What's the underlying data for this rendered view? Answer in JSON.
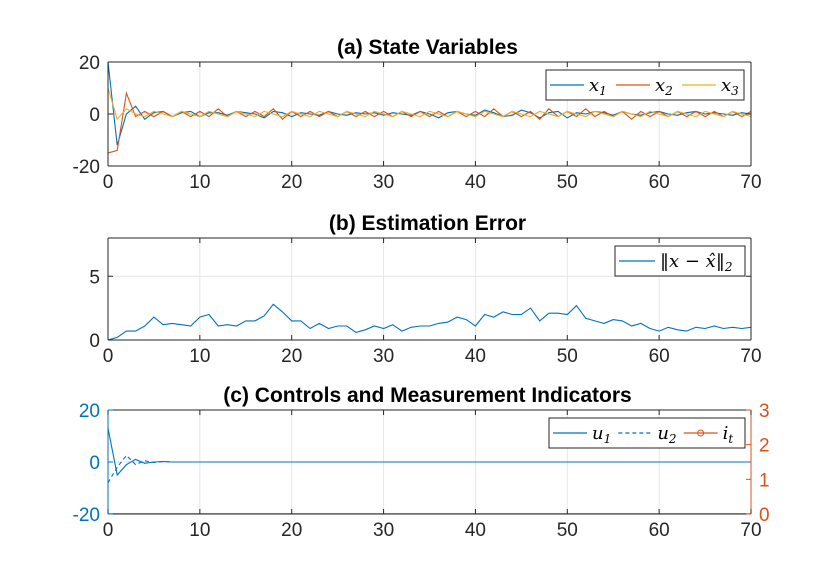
{
  "colors": {
    "blue": "#0072BD",
    "orange": "#D95319",
    "yellow": "#EDB120",
    "left_axis_c": "#0072BD",
    "right_axis_c": "#D95319"
  },
  "chart_data": [
    {
      "id": "a",
      "type": "line",
      "title": "(a) State Variables",
      "xlim": [
        0,
        70
      ],
      "ylim": [
        -20,
        20
      ],
      "xticks": [
        0,
        10,
        20,
        30,
        40,
        50,
        60,
        70
      ],
      "xtick_labels": [
        "0",
        "10",
        "20",
        "30",
        "40",
        "50",
        "60",
        "70"
      ],
      "yticks": [
        -20,
        0,
        20
      ],
      "ytick_labels": [
        "-20",
        "0",
        "20"
      ],
      "grid": true,
      "legend_position": "top-right",
      "legend": [
        "x1",
        "x2",
        "x3"
      ],
      "legend_display": [
        {
          "base": "x",
          "sub": "1"
        },
        {
          "base": "x",
          "sub": "2"
        },
        {
          "base": "x",
          "sub": "3"
        }
      ],
      "series": [
        {
          "name": "x1",
          "color": "#0072BD",
          "x": [
            0,
            1,
            2,
            3,
            4,
            5,
            6,
            7,
            8,
            9,
            10,
            11,
            12,
            13,
            14,
            15,
            16,
            17,
            18,
            19,
            20,
            21,
            22,
            23,
            24,
            25,
            26,
            27,
            28,
            29,
            30,
            31,
            32,
            33,
            34,
            35,
            36,
            37,
            38,
            39,
            40,
            41,
            42,
            43,
            44,
            45,
            46,
            47,
            48,
            49,
            50,
            51,
            52,
            53,
            54,
            55,
            56,
            57,
            58,
            59,
            60,
            61,
            62,
            63,
            64,
            65,
            66,
            67,
            68,
            69,
            70
          ],
          "values": [
            20,
            -12,
            0,
            3,
            -2,
            0.5,
            1,
            -1,
            0.5,
            1,
            -1,
            0.5,
            0.5,
            -0.5,
            1,
            0.5,
            0,
            -1.5,
            1,
            0.5,
            -1,
            0.5,
            0,
            -0.5,
            1,
            0,
            -0.5,
            0.5,
            0,
            0.5,
            -0.5,
            0.5,
            0,
            -0.5,
            1,
            0,
            -1.5,
            0.5,
            1,
            0,
            -0.5,
            1.5,
            0.5,
            -1,
            -0.5,
            1.5,
            0.5,
            -1.5,
            0.5,
            1,
            -1.5,
            0.5,
            0,
            1,
            0.5,
            -0.5,
            1,
            0,
            -0.5,
            0.5,
            1,
            0,
            -0.5,
            0.5,
            1,
            0,
            0.5,
            0,
            -0.5,
            0.5,
            0
          ]
        },
        {
          "name": "x2",
          "color": "#D95319",
          "x": [
            0,
            1,
            2,
            3,
            4,
            5,
            6,
            7,
            8,
            9,
            10,
            11,
            12,
            13,
            14,
            15,
            16,
            17,
            18,
            19,
            20,
            21,
            22,
            23,
            24,
            25,
            26,
            27,
            28,
            29,
            30,
            31,
            32,
            33,
            34,
            35,
            36,
            37,
            38,
            39,
            40,
            41,
            42,
            43,
            44,
            45,
            46,
            47,
            48,
            49,
            50,
            51,
            52,
            53,
            54,
            55,
            56,
            57,
            58,
            59,
            60,
            61,
            62,
            63,
            64,
            65,
            66,
            67,
            68,
            69,
            70
          ],
          "values": [
            -15,
            -14,
            8,
            -1,
            1,
            -1,
            1,
            -1,
            1,
            -1,
            1,
            -1,
            2,
            -1,
            1,
            -1,
            1,
            -1,
            2,
            -2,
            1,
            -1,
            1,
            -1,
            1,
            -1,
            1,
            -1,
            1,
            -1,
            1,
            -1,
            1,
            -1,
            1,
            -1,
            1,
            -1,
            1,
            -1,
            1,
            -1,
            2,
            -1,
            1,
            -1,
            1,
            -2,
            2,
            -1,
            1,
            -1,
            2,
            -1,
            1,
            -1,
            1,
            -2,
            1,
            -1,
            1,
            -1,
            1,
            -1,
            1,
            -1,
            1,
            -1,
            1,
            -1,
            1
          ]
        },
        {
          "name": "x3",
          "color": "#EDB120",
          "x": [
            0,
            1,
            2,
            3,
            4,
            5,
            6,
            7,
            8,
            9,
            10,
            11,
            12,
            13,
            14,
            15,
            16,
            17,
            18,
            19,
            20,
            21,
            22,
            23,
            24,
            25,
            26,
            27,
            28,
            29,
            30,
            31,
            32,
            33,
            34,
            35,
            36,
            37,
            38,
            39,
            40,
            41,
            42,
            43,
            44,
            45,
            46,
            47,
            48,
            49,
            50,
            51,
            52,
            53,
            54,
            55,
            56,
            57,
            58,
            59,
            60,
            61,
            62,
            63,
            64,
            65,
            66,
            67,
            68,
            69,
            70
          ],
          "values": [
            10,
            -2,
            2,
            0,
            -1,
            1,
            0,
            -1,
            1,
            0,
            -1,
            1,
            0,
            -1,
            1,
            0,
            -1,
            1,
            0,
            -1,
            1,
            0,
            -1,
            1,
            0,
            -1,
            1,
            0,
            -1,
            1,
            0,
            -1,
            1,
            0,
            -1,
            1,
            0,
            -1,
            1,
            0,
            -1,
            1,
            0,
            -1,
            1,
            0,
            -1,
            1,
            0,
            -1,
            1,
            0,
            -1,
            1,
            0,
            -1,
            1,
            0,
            -1,
            1,
            0,
            -1,
            1,
            0,
            -1,
            1,
            0,
            -1,
            1,
            0,
            -1
          ]
        }
      ]
    },
    {
      "id": "b",
      "type": "line",
      "title": "(b) Estimation Error",
      "xlim": [
        0,
        70
      ],
      "ylim": [
        0,
        8
      ],
      "xticks": [
        0,
        10,
        20,
        30,
        40,
        50,
        60,
        70
      ],
      "xtick_labels": [
        "0",
        "10",
        "20",
        "30",
        "40",
        "50",
        "60",
        "70"
      ],
      "yticks": [
        0,
        5
      ],
      "ytick_labels": [
        "0",
        "5"
      ],
      "grid": true,
      "legend_position": "top-right",
      "legend": [
        "||x - x̂||2"
      ],
      "legend_display": [
        {
          "base": "‖x − x̂‖",
          "sub": "2"
        }
      ],
      "series": [
        {
          "name": "||x - x̂||2",
          "color": "#0072BD",
          "x": [
            0,
            1,
            2,
            3,
            4,
            5,
            6,
            7,
            8,
            9,
            10,
            11,
            12,
            13,
            14,
            15,
            16,
            17,
            18,
            19,
            20,
            21,
            22,
            23,
            24,
            25,
            26,
            27,
            28,
            29,
            30,
            31,
            32,
            33,
            34,
            35,
            36,
            37,
            38,
            39,
            40,
            41,
            42,
            43,
            44,
            45,
            46,
            47,
            48,
            49,
            50,
            51,
            52,
            53,
            54,
            55,
            56,
            57,
            58,
            59,
            60,
            61,
            62,
            63,
            64,
            65,
            66,
            67,
            68,
            69,
            70
          ],
          "values": [
            0,
            0.2,
            0.7,
            0.7,
            1.1,
            1.8,
            1.2,
            1.3,
            1.2,
            1.1,
            1.8,
            2.0,
            1.1,
            1.2,
            1.1,
            1.5,
            1.5,
            1.9,
            2.8,
            2.2,
            1.5,
            1.5,
            0.9,
            1.3,
            0.9,
            1.1,
            1.1,
            0.6,
            0.8,
            1.1,
            0.9,
            1.2,
            0.7,
            1.0,
            1.1,
            1.1,
            1.3,
            1.4,
            1.8,
            1.6,
            1.1,
            2.0,
            1.8,
            2.2,
            2.0,
            2.0,
            2.5,
            1.5,
            2.1,
            2.1,
            2.0,
            2.7,
            1.7,
            1.5,
            1.3,
            1.6,
            1.5,
            1.1,
            1.3,
            0.9,
            0.7,
            1.0,
            0.8,
            0.7,
            1.0,
            0.9,
            1.1,
            0.9,
            1.0,
            0.9,
            1.0
          ]
        }
      ]
    },
    {
      "id": "c",
      "type": "line",
      "title": "(c) Controls and Measurement Indicators",
      "xlim": [
        0,
        70
      ],
      "ylim": [
        -20,
        20
      ],
      "ylim_right": [
        0,
        3
      ],
      "xticks": [
        0,
        10,
        20,
        30,
        40,
        50,
        60,
        70
      ],
      "xtick_labels": [
        "0",
        "10",
        "20",
        "30",
        "40",
        "50",
        "60",
        "70"
      ],
      "yticks": [
        -20,
        0,
        20
      ],
      "ytick_labels": [
        "-20",
        "0",
        "20"
      ],
      "yticks_right": [
        0,
        1,
        2,
        3
      ],
      "ytick_labels_right": [
        "0",
        "1",
        "2",
        "3"
      ],
      "grid": true,
      "legend_position": "top-right",
      "legend": [
        "u1",
        "u2",
        "it"
      ],
      "legend_display": [
        {
          "base": "u",
          "sub": "1"
        },
        {
          "base": "u",
          "sub": "2"
        },
        {
          "base": "i",
          "sub": "t"
        }
      ],
      "series": [
        {
          "name": "u1",
          "color": "#0072BD",
          "style": "solid",
          "axis": "left",
          "x": [
            0,
            1,
            2,
            3,
            4,
            5,
            6,
            7,
            8,
            9,
            10,
            15,
            20,
            25,
            30,
            35,
            40,
            45,
            50,
            55,
            60,
            65,
            70
          ],
          "values": [
            13,
            -5,
            -1,
            1,
            -0.5,
            0,
            0.2,
            0,
            0,
            0,
            0,
            0,
            0,
            0,
            0,
            0,
            0,
            0,
            0,
            0,
            0,
            0,
            0
          ]
        },
        {
          "name": "u2",
          "color": "#0072BD",
          "style": "dashed",
          "axis": "left",
          "x": [
            0,
            1,
            2,
            3,
            4,
            5,
            6,
            7,
            8,
            9,
            10,
            15,
            20,
            25,
            30,
            35,
            40,
            45,
            50,
            55,
            60,
            65,
            70
          ],
          "values": [
            -8,
            -2,
            2.5,
            -1,
            0.5,
            -0.2,
            0.2,
            0,
            0,
            0,
            0,
            0,
            0,
            0,
            0,
            0,
            0,
            0,
            0,
            0,
            0,
            0,
            0
          ]
        },
        {
          "name": "it",
          "color": "#D95319",
          "style": "solid-marker",
          "axis": "right",
          "x": [
            0,
            70
          ],
          "values": [
            0,
            0
          ]
        }
      ]
    }
  ]
}
